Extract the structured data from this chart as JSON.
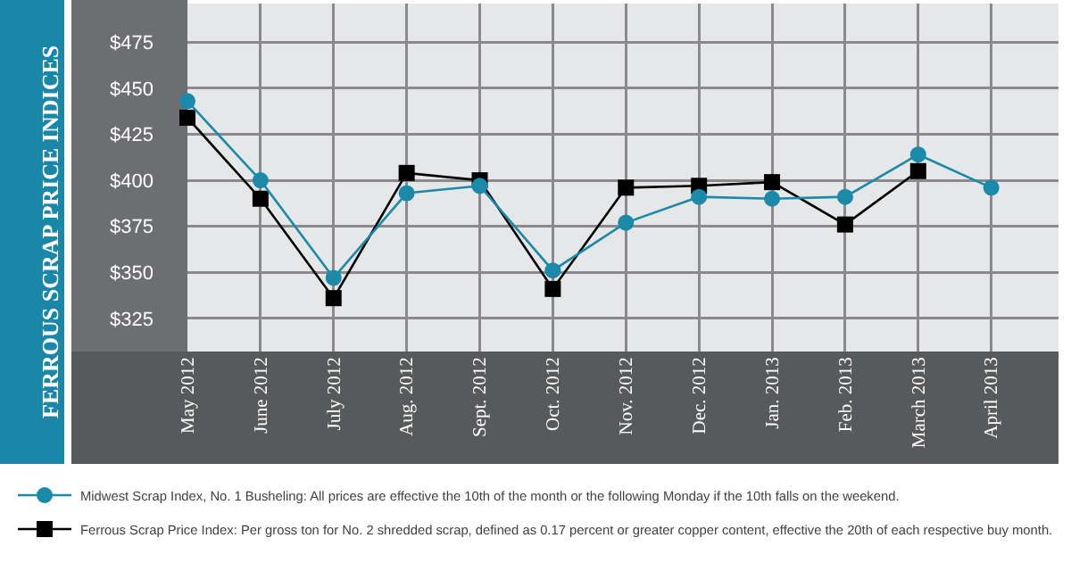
{
  "chart_data": {
    "type": "line",
    "ylabel": "FERROUS SCRAP PRICE INDICES",
    "categories": [
      "May 2012",
      "June 2012",
      "July 2012",
      "Aug. 2012",
      "Sept. 2012",
      "Oct. 2012",
      "Nov. 2012",
      "Dec. 2012",
      "Jan. 2013",
      "Feb. 2013",
      "March 2013",
      "April 2013"
    ],
    "series": [
      {
        "name": "Midwest Scrap Index, No. 1 Busheling: All prices are effective the 10th of the month or the following Monday if the 10th falls on the weekend.",
        "color": "#1a8aa8",
        "marker": "circle",
        "values": [
          443,
          400,
          347,
          393,
          397,
          351,
          377,
          391,
          390,
          391,
          414,
          396
        ]
      },
      {
        "name": "Ferrous Scrap Price Index: Per gross ton for No. 2 shredded scrap, defined as 0.17 percent or greater copper content, effective the 20th of each respective buy month.",
        "color": "#000000",
        "marker": "square",
        "values": [
          434,
          390,
          336,
          404,
          400,
          341,
          396,
          397,
          399,
          376,
          405,
          null
        ]
      }
    ],
    "ylim": [
      307,
      496
    ],
    "yticks": [
      {
        "value": 325,
        "label": "$325"
      },
      {
        "value": 350,
        "label": "$350"
      },
      {
        "value": 375,
        "label": "$375"
      },
      {
        "value": 400,
        "label": "$400"
      },
      {
        "value": 425,
        "label": "$425"
      },
      {
        "value": 450,
        "label": "$450"
      },
      {
        "value": 475,
        "label": "$475"
      }
    ],
    "grid": true,
    "legend": "bottom"
  }
}
